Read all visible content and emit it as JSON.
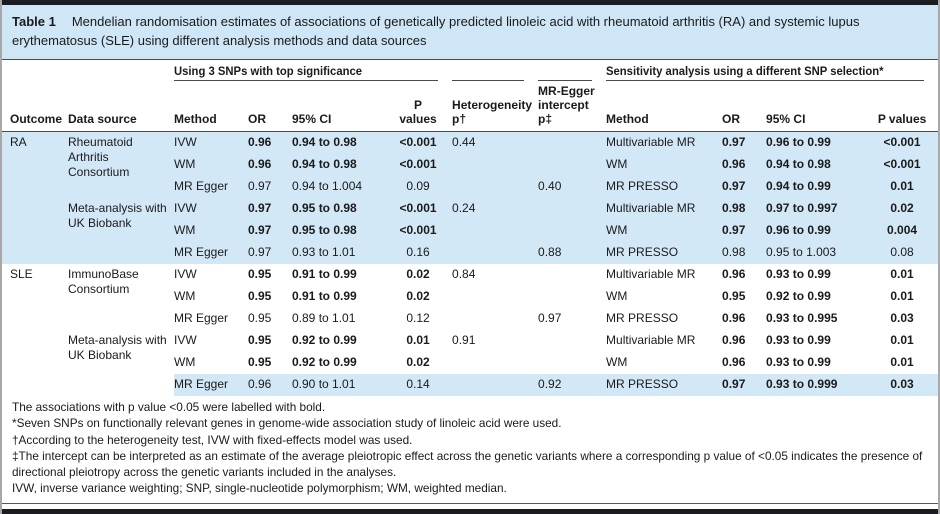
{
  "colors": {
    "title_background": "#cfe6f6",
    "row_shade_blue": "#d3e8f7",
    "border_bar_dark": "#1c1b22",
    "rule_gray": "#4a4a4c",
    "text": "#1a1a1a"
  },
  "caption": {
    "label": "Table 1",
    "text": "Mendelian randomisation estimates of associations of genetically predicted linoleic acid with rheumatoid arthritis (RA) and systemic lupus erythematosus (SLE) using different analysis methods and data sources"
  },
  "table": {
    "header": {
      "group_left": "Using 3 SNPs with top significance",
      "group_right": "Sensitivity analysis using a different SNP selection*",
      "columns": [
        "Outcome",
        "Data source",
        "Method",
        "OR",
        "95% CI",
        "P values",
        "Heterogeneity\np†",
        "MR-Egger\nintercept\np‡",
        "Method",
        "OR",
        "95% CI",
        "P values"
      ]
    },
    "rows": [
      {
        "outcome": "RA",
        "outcome_rowspan": 6,
        "source": "Rheumatoid Arthritis Consortium",
        "source_rowspan": 3,
        "method": "IVW",
        "or": "0.96",
        "ci": "0.94 to 0.98",
        "p": "<0.001",
        "het": "0.44",
        "egger": "",
        "method2": "Multivariable MR",
        "or2": "0.97",
        "ci2": "0.96 to 0.99",
        "p2": "<0.001",
        "bold1": true,
        "bold2": true,
        "shaded": true
      },
      {
        "method": "WM",
        "or": "0.96",
        "ci": "0.94 to 0.98",
        "p": "<0.001",
        "het": "",
        "egger": "",
        "method2": "WM",
        "or2": "0.96",
        "ci2": "0.94 to 0.98",
        "p2": "<0.001",
        "bold1": true,
        "bold2": true,
        "shaded": true
      },
      {
        "method": "MR Egger",
        "or": "0.97",
        "ci": "0.94 to 1.004",
        "p": "0.09",
        "het": "",
        "egger": "0.40",
        "method2": "MR PRESSO",
        "or2": "0.97",
        "ci2": "0.94 to 0.99",
        "p2": "0.01",
        "bold1": false,
        "bold2": true,
        "shaded": true
      },
      {
        "source": "Meta-analysis with UK Biobank",
        "source_rowspan": 3,
        "method": "IVW",
        "or": "0.97",
        "ci": "0.95 to 0.98",
        "p": "<0.001",
        "het": "0.24",
        "egger": "",
        "method2": "Multivariable MR",
        "or2": "0.98",
        "ci2": "0.97 to 0.997",
        "p2": "0.02",
        "bold1": true,
        "bold2": true,
        "shaded": true
      },
      {
        "method": "WM",
        "or": "0.97",
        "ci": "0.95 to 0.98",
        "p": "<0.001",
        "het": "",
        "egger": "",
        "method2": "WM",
        "or2": "0.97",
        "ci2": "0.96 to 0.99",
        "p2": "0.004",
        "bold1": true,
        "bold2": true,
        "shaded": true
      },
      {
        "method": "MR Egger",
        "or": "0.97",
        "ci": "0.93 to 1.01",
        "p": "0.16",
        "het": "",
        "egger": "0.88",
        "method2": "MR PRESSO",
        "or2": "0.98",
        "ci2": "0.95 to 1.003",
        "p2": "0.08",
        "bold1": false,
        "bold2": false,
        "shaded": true
      },
      {
        "outcome": "SLE",
        "outcome_rowspan": 6,
        "source": "ImmunoBase Consortium",
        "source_rowspan": 3,
        "method": "IVW",
        "or": "0.95",
        "ci": "0.91 to 0.99",
        "p": "0.02",
        "het": "0.84",
        "egger": "",
        "method2": "Multivariable MR",
        "or2": "0.96",
        "ci2": "0.93 to 0.99",
        "p2": "0.01",
        "bold1": true,
        "bold2": true,
        "shaded": false
      },
      {
        "method": "WM",
        "or": "0.95",
        "ci": "0.91 to 0.99",
        "p": "0.02",
        "het": "",
        "egger": "",
        "method2": "WM",
        "or2": "0.95",
        "ci2": "0.92 to 0.99",
        "p2": "0.01",
        "bold1": true,
        "bold2": true,
        "shaded": false
      },
      {
        "method": "MR Egger",
        "or": "0.95",
        "ci": "0.89 to 1.01",
        "p": "0.12",
        "het": "",
        "egger": "0.97",
        "method2": "MR PRESSO",
        "or2": "0.96",
        "ci2": "0.93 to 0.995",
        "p2": "0.03",
        "bold1": false,
        "bold2": true,
        "shaded": false
      },
      {
        "source": "Meta-analysis with UK Biobank",
        "source_rowspan": 3,
        "method": "IVW",
        "or": "0.95",
        "ci": "0.92 to 0.99",
        "p": "0.01",
        "het": "0.91",
        "egger": "",
        "method2": "Multivariable MR",
        "or2": "0.96",
        "ci2": "0.93 to 0.99",
        "p2": "0.01",
        "bold1": true,
        "bold2": true,
        "shaded": false
      },
      {
        "method": "WM",
        "or": "0.95",
        "ci": "0.92 to 0.99",
        "p": "0.02",
        "het": "",
        "egger": "",
        "method2": "WM",
        "or2": "0.96",
        "ci2": "0.93 to 0.99",
        "p2": "0.01",
        "bold1": true,
        "bold2": true,
        "shaded": false
      },
      {
        "method": "MR Egger",
        "or": "0.96",
        "ci": "0.90 to 1.01",
        "p": "0.14",
        "het": "",
        "egger": "0.92",
        "method2": "MR PRESSO",
        "or2": "0.97",
        "ci2": "0.93 to 0.999",
        "p2": "0.03",
        "bold1": false,
        "bold2": true,
        "shaded": true
      }
    ]
  },
  "footnotes": [
    "The associations with p value <0.05 were labelled with bold.",
    "*Seven SNPs on functionally relevant genes in genome-wide association study of linoleic acid were used.",
    "†According to the heterogeneity test, IVW with fixed-effects model was used.",
    "‡The intercept can be interpreted as an estimate of the average pleiotropic effect across the genetic variants where a corresponding p value of <0.05 indicates the presence of directional pleiotropy across the genetic variants included in the analyses.",
    "IVW, inverse variance weighting; SNP, single-nucleotide polymorphism; WM, weighted median."
  ]
}
